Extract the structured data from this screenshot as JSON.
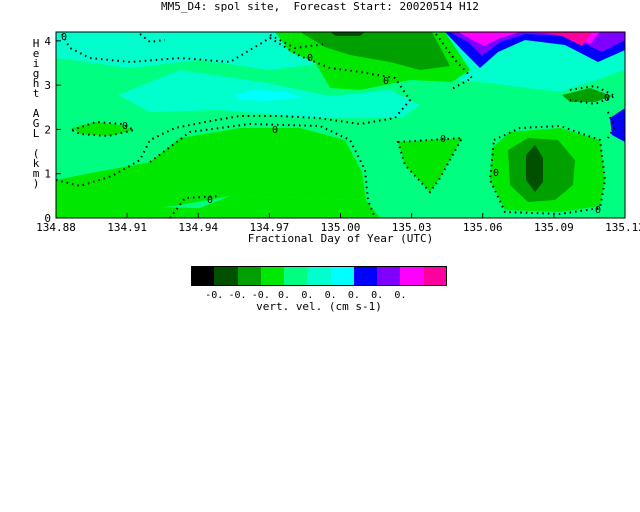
{
  "chart_data": {
    "type": "heatmap",
    "title": "MM5_D4: spol site,  Forecast Start: 20020514 H12",
    "xlabel": "Fractional Day of Year (UTC)",
    "ylabel": "Height AGL (km)",
    "x_ticks": [
      "134.88",
      "134.91",
      "134.94",
      "134.97",
      "135.00",
      "135.03",
      "135.06",
      "135.09",
      "135.12"
    ],
    "y_ticks": [
      "0",
      "1",
      "2",
      "3",
      "4"
    ],
    "xlim": [
      134.88,
      135.12
    ],
    "ylim": [
      0,
      4.2
    ],
    "contour_label": "0",
    "colorbar": {
      "label": "vert. vel. (cm s-1)",
      "colors": [
        "#000000",
        "#005000",
        "#00a000",
        "#00e800",
        "#00ff80",
        "#00ffcc",
        "#00ffff",
        "#0000ff",
        "#8000ff",
        "#ff00ff",
        "#ff00a0"
      ],
      "tick_labels": [
        "-0.",
        "-0.",
        "-0.",
        "0.",
        "0.",
        "0.",
        "0.",
        "0.",
        "0."
      ]
    }
  }
}
